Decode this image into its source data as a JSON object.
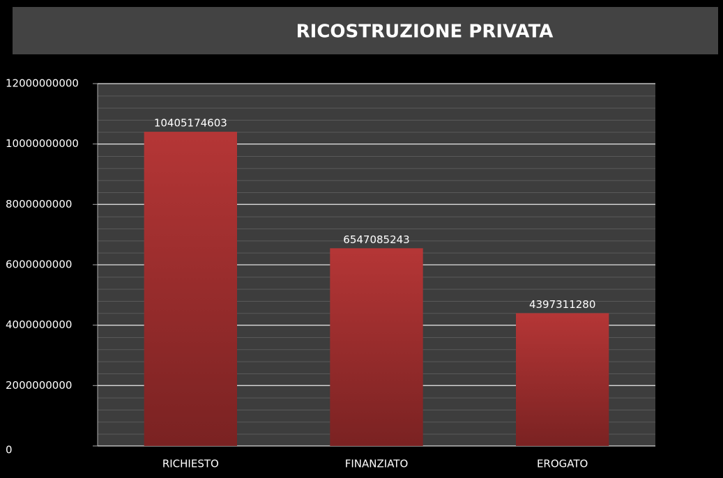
{
  "chart_data": {
    "type": "bar",
    "title": "RICOSTRUZIONE PRIVATA",
    "categories": [
      "RICHIESTO",
      "FINANZIATO",
      "EROGATO"
    ],
    "values": [
      10405174603,
      6547085243,
      4397311280
    ],
    "color": "#b23434",
    "ylim": [
      0,
      12000000000
    ],
    "yticks": [
      0,
      2000000000,
      4000000000,
      6000000000,
      8000000000,
      10000000000,
      12000000000
    ],
    "grid": true
  }
}
